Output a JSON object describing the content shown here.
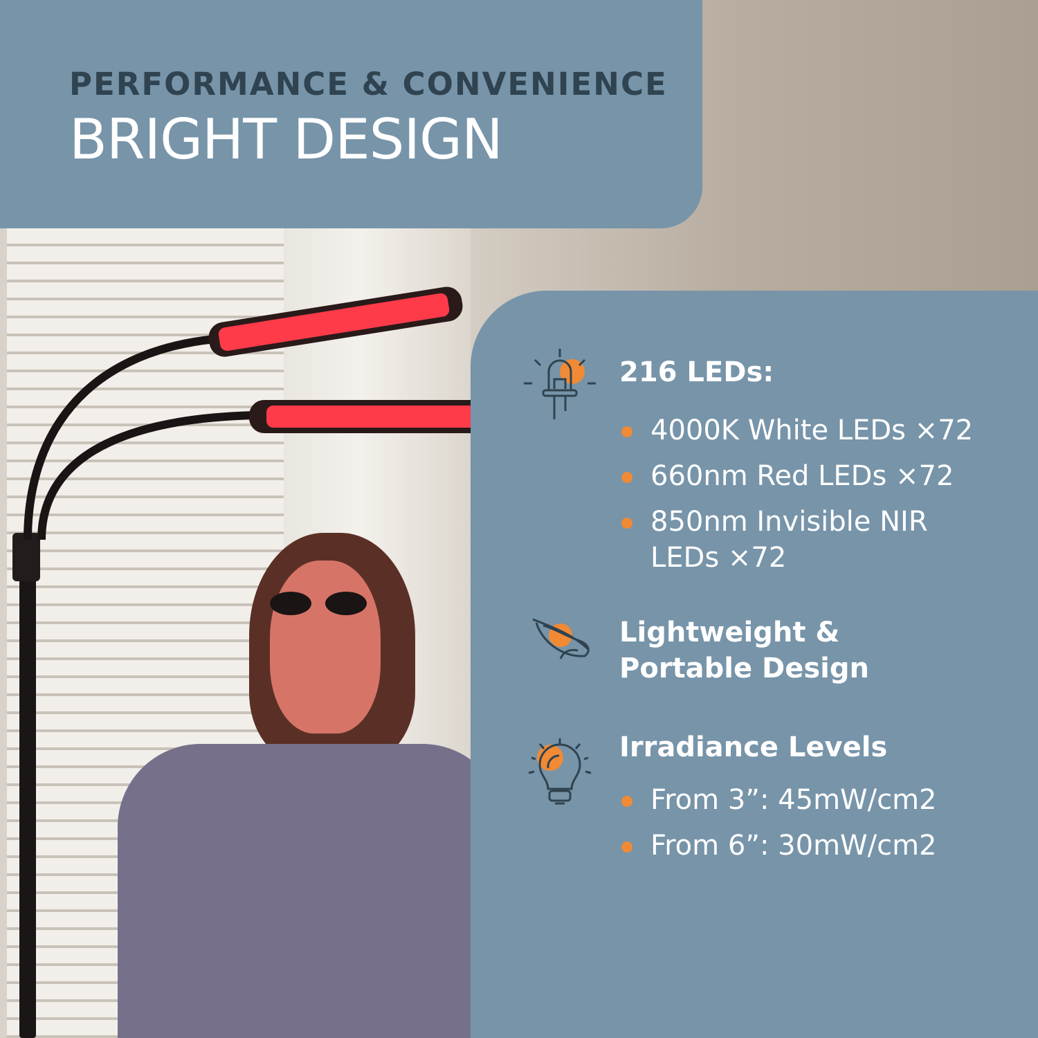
{
  "header": {
    "kicker": "PERFORMANCE & CONVENIENCE",
    "title": "BRIGHT DESIGN"
  },
  "colors": {
    "panel_blue": "#7794a9",
    "kicker_dark": "#2f4350",
    "accent_orange": "#f08a35",
    "lamp_red": "#ff3b4a"
  },
  "features": [
    {
      "icon": "led-diode-icon",
      "heading": "216 LEDs:",
      "bullets": [
        "4000K White LEDs ×72",
        "660nm Red LEDs ×72",
        "850nm Invisible NIR",
        "LEDs ×72"
      ]
    },
    {
      "icon": "feather-icon",
      "heading_line1": "Lightweight &",
      "heading_line2": "Portable Design"
    },
    {
      "icon": "light-bulb-icon",
      "heading": "Irradiance Levels",
      "bullets": [
        "From 3”: 45mW/cm2",
        "From 6”: 30mW/cm2"
      ]
    }
  ]
}
